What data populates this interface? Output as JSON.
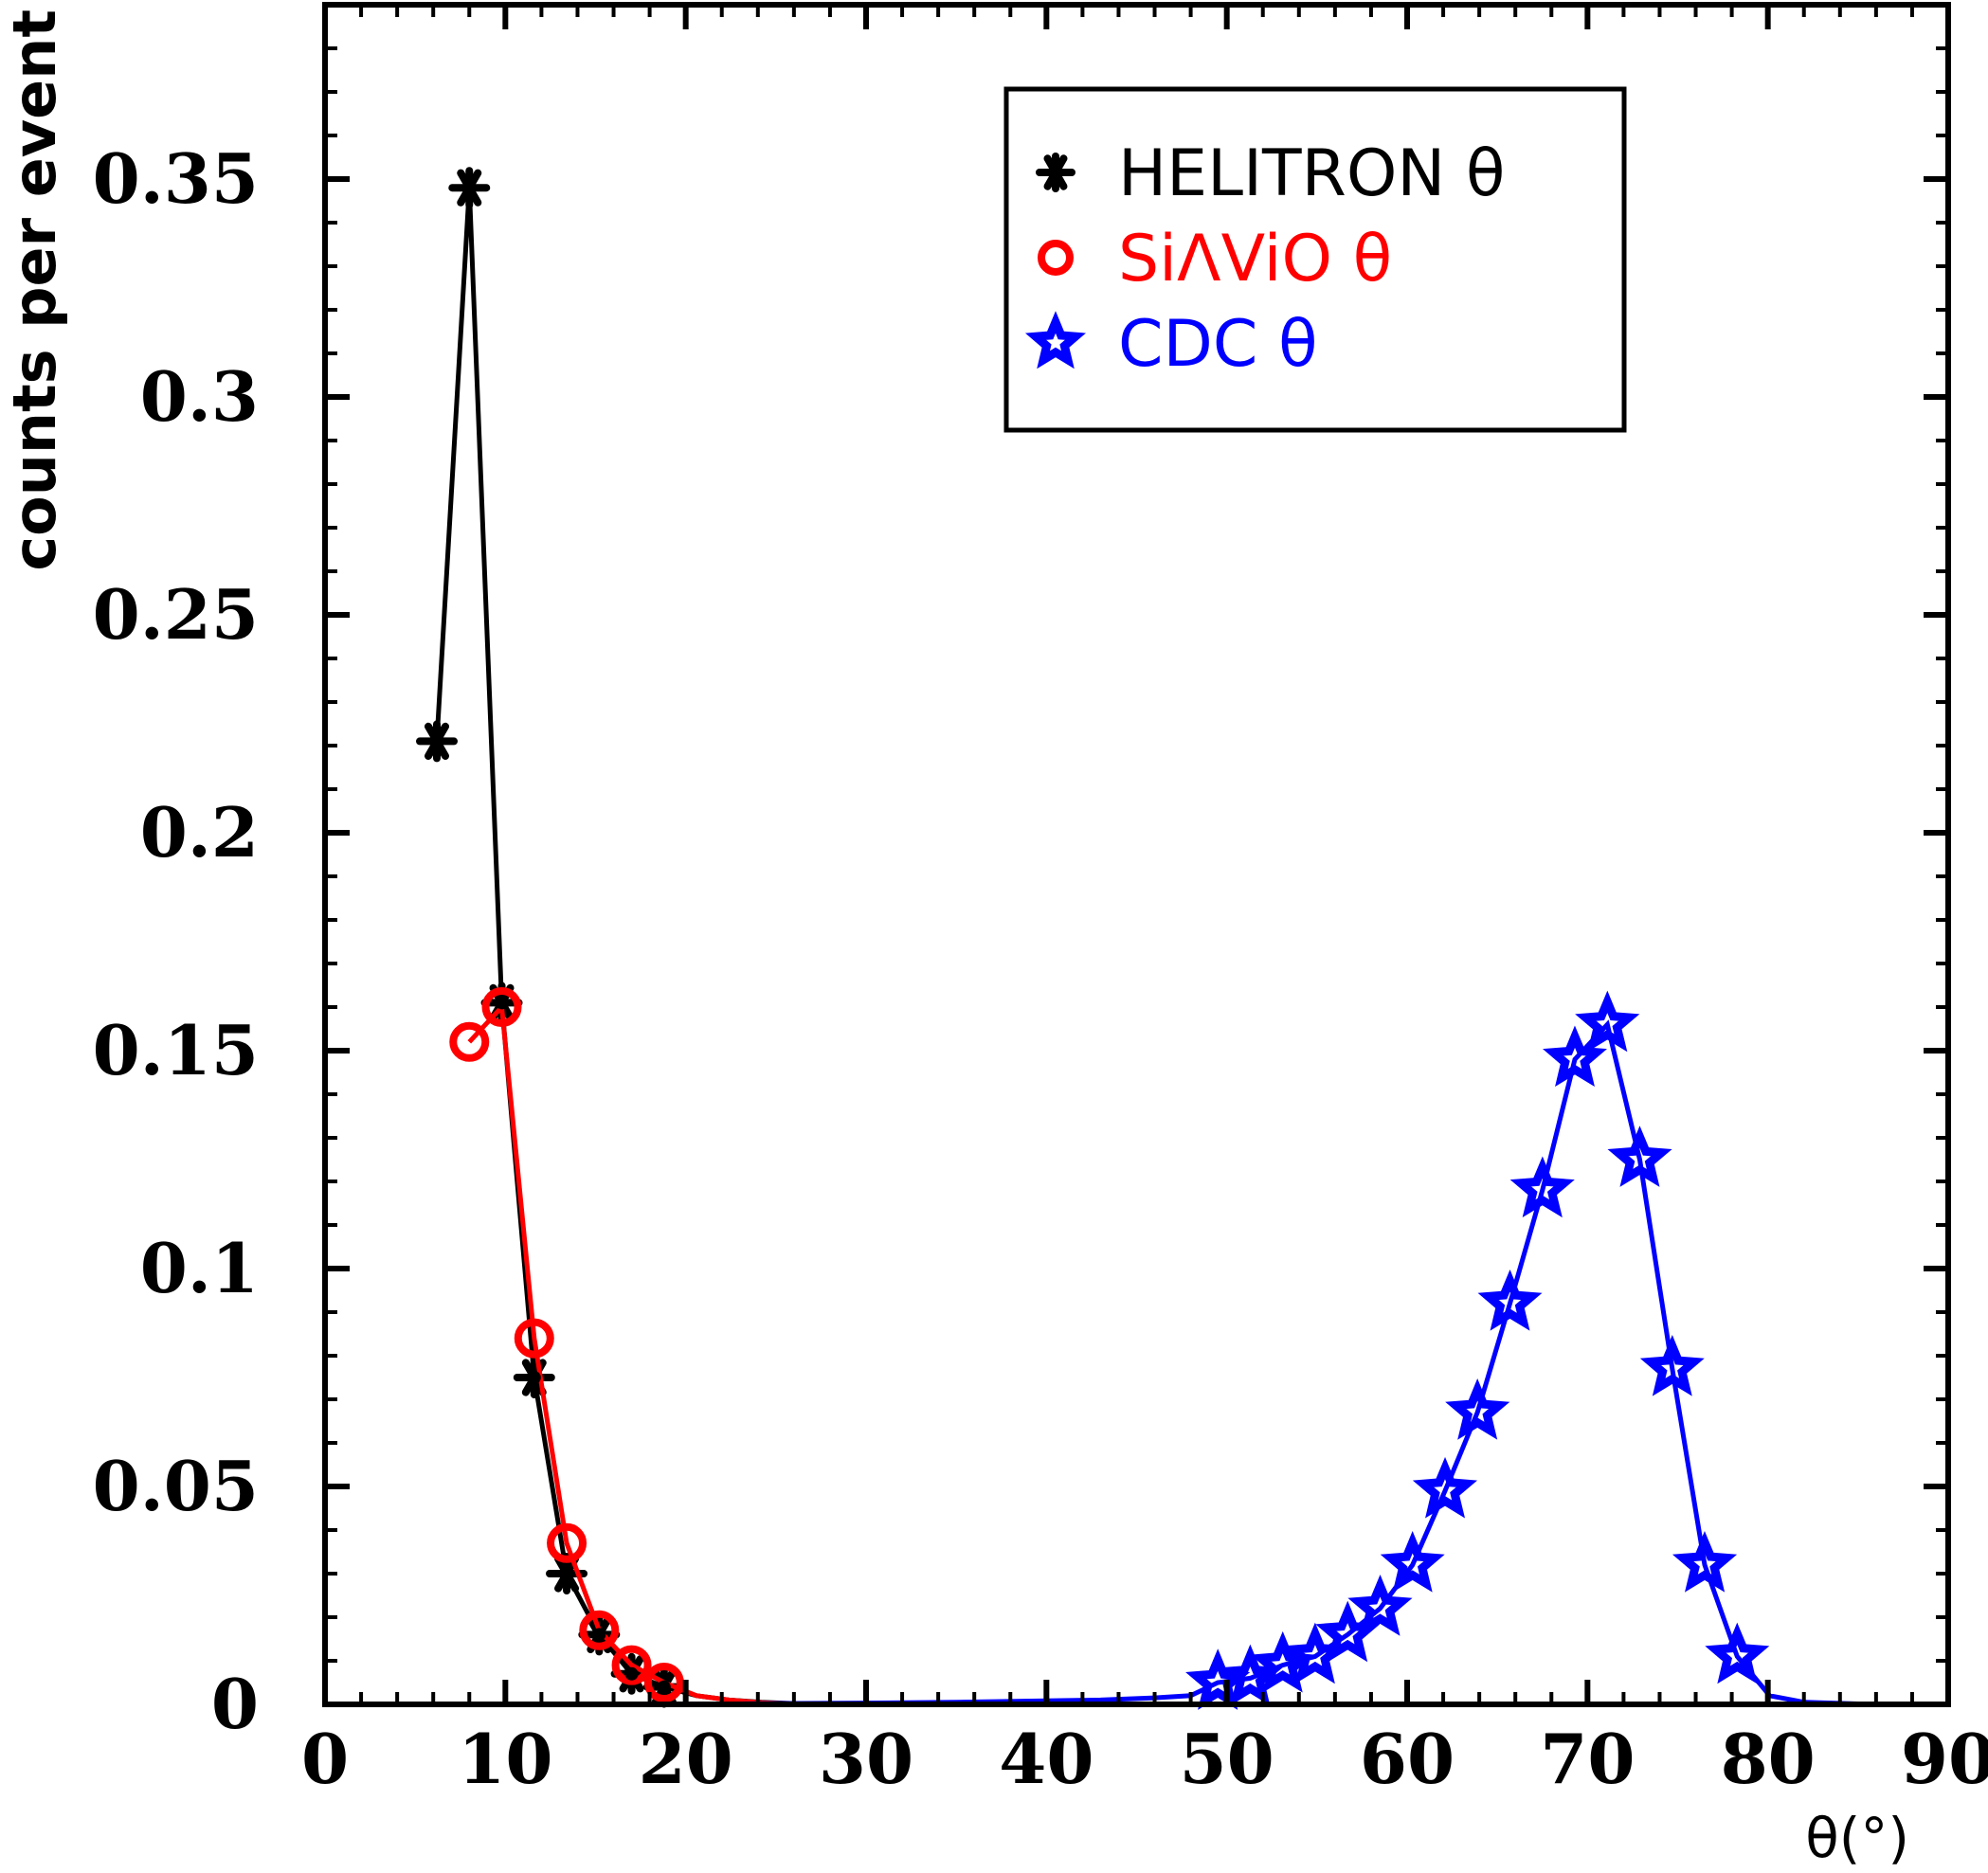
{
  "chart_data": {
    "type": "scatter",
    "title": "",
    "xlabel": "θ(°)",
    "ylabel": "counts per event",
    "xlim": [
      0,
      90
    ],
    "ylim": [
      0,
      0.39
    ],
    "xticks": [
      0,
      10,
      20,
      30,
      40,
      50,
      60,
      70,
      80,
      90
    ],
    "xtick_labels": [
      "0",
      "10",
      "20",
      "30",
      "40",
      "50",
      "60",
      "70",
      "80",
      "90"
    ],
    "yticks": [
      0,
      0.05,
      0.1,
      0.15,
      0.2,
      0.25,
      0.3,
      0.35
    ],
    "ytick_labels": [
      "0",
      "0.05",
      "0.1",
      "0.15",
      "0.2",
      "0.25",
      "0.3",
      "0.35"
    ],
    "grid": false,
    "legend_position": "top-right",
    "series": [
      {
        "name": "HELITRON θ",
        "color": "#000000",
        "marker": "asterisk",
        "x": [
          6.2,
          8.0,
          9.8,
          11.6,
          13.4,
          15.2,
          17.0,
          18.8,
          20.6,
          22.4,
          24.2,
          26.0,
          28.0,
          30.0,
          35.0,
          40.0,
          45.0,
          50.0,
          60.0,
          70.0,
          80.0,
          90.0
        ],
        "y": [
          0.221,
          0.348,
          0.161,
          0.075,
          0.03,
          0.016,
          0.007,
          0.004,
          0.002,
          0.001,
          0.0005,
          0.0002,
          0,
          0,
          0,
          0,
          0,
          0,
          0,
          0,
          0,
          0
        ]
      },
      {
        "name": "SiΛViO θ",
        "color": "#ff0000",
        "marker": "open-circle",
        "x": [
          8.0,
          9.8,
          11.6,
          13.4,
          15.2,
          17.0,
          18.8,
          20.6,
          22.4,
          24.2,
          26.0,
          30.0,
          40.0,
          50.0,
          60.0,
          70.0,
          80.0,
          90.0
        ],
        "y": [
          0.152,
          0.16,
          0.084,
          0.037,
          0.017,
          0.009,
          0.005,
          0.002,
          0.001,
          0.0004,
          0.0001,
          0,
          0,
          0,
          0,
          0,
          0,
          0
        ]
      },
      {
        "name": "CDC θ",
        "color": "#0000ff",
        "marker": "star",
        "x": [
          0,
          10,
          20,
          25,
          30,
          35,
          40,
          43,
          46,
          48,
          49.5,
          51.3,
          53.1,
          54.9,
          56.7,
          58.5,
          60.3,
          62.1,
          63.9,
          65.7,
          67.5,
          69.3,
          71.1,
          72.9,
          74.7,
          76.5,
          78.3,
          80.1,
          82,
          85,
          90
        ],
        "y": [
          0,
          0,
          0,
          0.0002,
          0.0003,
          0.0005,
          0.0008,
          0.001,
          0.0015,
          0.002,
          0.005,
          0.006,
          0.009,
          0.011,
          0.016,
          0.022,
          0.032,
          0.049,
          0.067,
          0.092,
          0.118,
          0.148,
          0.156,
          0.125,
          0.077,
          0.032,
          0.011,
          0.002,
          0.0005,
          0.0001,
          0
        ]
      }
    ]
  }
}
